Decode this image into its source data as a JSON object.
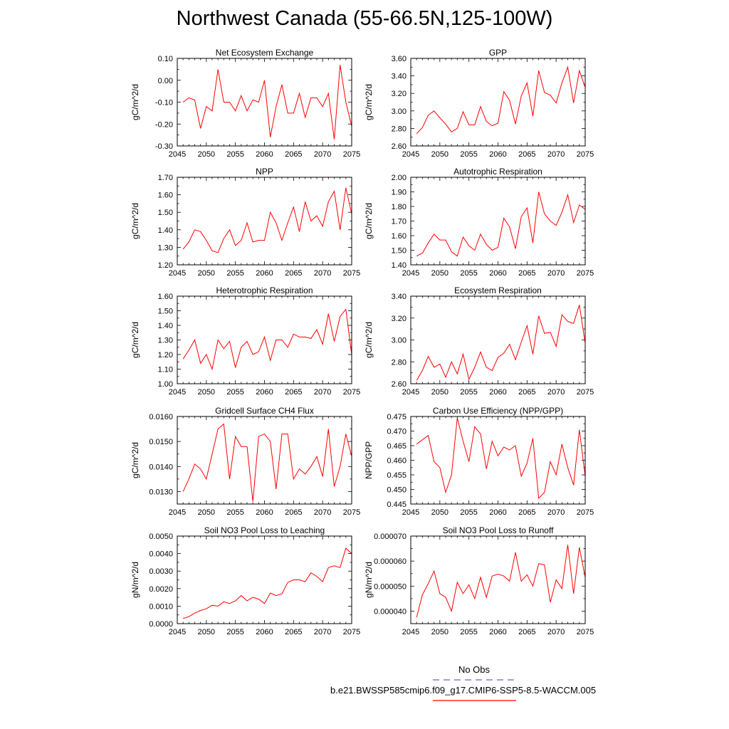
{
  "title": "Northwest Canada (55-66.5N,125-100W)",
  "legend": {
    "obs_label": "No Obs",
    "obs_color": "#6666cc",
    "model_label": "b.e21.BWSSP585cmip6.f09_g17.CMIP6-SSP5-8.5-WACCM.005",
    "model_color": "#ff0000"
  },
  "chart_data": [
    {
      "type": "line",
      "title": "Net Ecosystem Exchange",
      "ylabel": "gC/m^2/d",
      "xlim": [
        2045,
        2075
      ],
      "ylim": [
        -0.3,
        0.1
      ],
      "xticks": [
        "2045",
        "2050",
        "2055",
        "2060",
        "2065",
        "2070",
        "2075"
      ],
      "yticks": [
        "-0.30",
        "-0.20",
        "-0.10",
        "0.00",
        "0.10"
      ],
      "series": [
        {
          "x": [
            2046,
            2047,
            2048,
            2049,
            2050,
            2051,
            2052,
            2053,
            2054,
            2055,
            2056,
            2057,
            2058,
            2059,
            2060,
            2061,
            2062,
            2063,
            2064,
            2065,
            2066,
            2067,
            2068,
            2069,
            2070,
            2071,
            2072,
            2073,
            2074,
            2075
          ],
          "values": [
            -0.1,
            -0.08,
            -0.09,
            -0.22,
            -0.12,
            -0.14,
            0.05,
            -0.1,
            -0.1,
            -0.14,
            -0.07,
            -0.14,
            -0.09,
            -0.1,
            0.0,
            -0.26,
            -0.12,
            -0.02,
            -0.15,
            -0.15,
            -0.06,
            -0.17,
            -0.08,
            -0.08,
            -0.12,
            -0.06,
            -0.27,
            0.07,
            -0.1,
            -0.21
          ]
        }
      ]
    },
    {
      "type": "line",
      "title": "GPP",
      "ylabel": "gC/m^2/d",
      "xlim": [
        2045,
        2075
      ],
      "ylim": [
        2.6,
        3.6
      ],
      "xticks": [
        "2045",
        "2050",
        "2055",
        "2060",
        "2065",
        "2070",
        "2075"
      ],
      "yticks": [
        "2.60",
        "2.80",
        "3.00",
        "3.20",
        "3.40",
        "3.60"
      ],
      "series": [
        {
          "x": [
            2046,
            2047,
            2048,
            2049,
            2050,
            2051,
            2052,
            2053,
            2054,
            2055,
            2056,
            2057,
            2058,
            2059,
            2060,
            2061,
            2062,
            2063,
            2064,
            2065,
            2066,
            2067,
            2068,
            2069,
            2070,
            2071,
            2072,
            2073,
            2074,
            2075
          ],
          "values": [
            2.74,
            2.81,
            2.95,
            3.0,
            2.92,
            2.85,
            2.76,
            2.8,
            2.99,
            2.84,
            2.84,
            3.05,
            2.88,
            2.83,
            2.86,
            3.22,
            3.12,
            2.85,
            3.17,
            3.32,
            2.94,
            3.46,
            3.21,
            3.18,
            3.09,
            3.32,
            3.5,
            3.09,
            3.46,
            3.27
          ]
        }
      ]
    },
    {
      "type": "line",
      "title": "NPP",
      "ylabel": "gC/m^2/d",
      "xlim": [
        2045,
        2075
      ],
      "ylim": [
        1.2,
        1.7
      ],
      "xticks": [
        "2045",
        "2050",
        "2055",
        "2060",
        "2065",
        "2070",
        "2075"
      ],
      "yticks": [
        "1.20",
        "1.30",
        "1.40",
        "1.50",
        "1.60",
        "1.70"
      ],
      "series": [
        {
          "x": [
            2046,
            2047,
            2048,
            2049,
            2050,
            2051,
            2052,
            2053,
            2054,
            2055,
            2056,
            2057,
            2058,
            2059,
            2060,
            2061,
            2062,
            2063,
            2064,
            2065,
            2066,
            2067,
            2068,
            2069,
            2070,
            2071,
            2072,
            2073,
            2074,
            2075
          ],
          "values": [
            1.29,
            1.33,
            1.4,
            1.39,
            1.34,
            1.28,
            1.27,
            1.35,
            1.4,
            1.31,
            1.34,
            1.44,
            1.33,
            1.34,
            1.34,
            1.5,
            1.44,
            1.34,
            1.44,
            1.53,
            1.39,
            1.56,
            1.45,
            1.48,
            1.42,
            1.56,
            1.62,
            1.4,
            1.64,
            1.49
          ]
        }
      ]
    },
    {
      "type": "line",
      "title": "Autotrophic Respiration",
      "ylabel": "gC/m^2/d",
      "xlim": [
        2045,
        2075
      ],
      "ylim": [
        1.4,
        2.0
      ],
      "xticks": [
        "2045",
        "2050",
        "2055",
        "2060",
        "2065",
        "2070",
        "2075"
      ],
      "yticks": [
        "1.40",
        "1.50",
        "1.60",
        "1.70",
        "1.80",
        "1.90",
        "2.00"
      ],
      "series": [
        {
          "x": [
            2046,
            2047,
            2048,
            2049,
            2050,
            2051,
            2052,
            2053,
            2054,
            2055,
            2056,
            2057,
            2058,
            2059,
            2060,
            2061,
            2062,
            2063,
            2064,
            2065,
            2066,
            2067,
            2068,
            2069,
            2070,
            2071,
            2072,
            2073,
            2074,
            2075
          ],
          "values": [
            1.46,
            1.48,
            1.55,
            1.61,
            1.57,
            1.57,
            1.49,
            1.46,
            1.59,
            1.53,
            1.5,
            1.61,
            1.54,
            1.5,
            1.52,
            1.72,
            1.66,
            1.51,
            1.73,
            1.79,
            1.55,
            1.9,
            1.75,
            1.7,
            1.67,
            1.76,
            1.88,
            1.69,
            1.81,
            1.78
          ]
        }
      ]
    },
    {
      "type": "line",
      "title": "Heterotrophic Respiration",
      "ylabel": "gC/m^2/d",
      "xlim": [
        2045,
        2075
      ],
      "ylim": [
        1.0,
        1.6
      ],
      "xticks": [
        "2045",
        "2050",
        "2055",
        "2060",
        "2065",
        "2070",
        "2075"
      ],
      "yticks": [
        "1.00",
        "1.10",
        "1.20",
        "1.30",
        "1.40",
        "1.50",
        "1.60"
      ],
      "series": [
        {
          "x": [
            2046,
            2047,
            2048,
            2049,
            2050,
            2051,
            2052,
            2053,
            2054,
            2055,
            2056,
            2057,
            2058,
            2059,
            2060,
            2061,
            2062,
            2063,
            2064,
            2065,
            2066,
            2067,
            2068,
            2069,
            2070,
            2071,
            2072,
            2073,
            2074,
            2075
          ],
          "values": [
            1.17,
            1.23,
            1.3,
            1.14,
            1.2,
            1.1,
            1.3,
            1.24,
            1.29,
            1.11,
            1.25,
            1.29,
            1.2,
            1.22,
            1.32,
            1.16,
            1.3,
            1.3,
            1.25,
            1.34,
            1.32,
            1.32,
            1.31,
            1.37,
            1.27,
            1.48,
            1.29,
            1.46,
            1.51,
            1.2
          ]
        }
      ]
    },
    {
      "type": "line",
      "title": "Ecosystem Respiration",
      "ylabel": "gC/m^2/d",
      "xlim": [
        2045,
        2075
      ],
      "ylim": [
        2.6,
        3.4
      ],
      "xticks": [
        "2045",
        "2050",
        "2055",
        "2060",
        "2065",
        "2070",
        "2075"
      ],
      "yticks": [
        "2.60",
        "2.80",
        "3.00",
        "3.20",
        "3.40"
      ],
      "series": [
        {
          "x": [
            2046,
            2047,
            2048,
            2049,
            2050,
            2051,
            2052,
            2053,
            2054,
            2055,
            2056,
            2057,
            2058,
            2059,
            2060,
            2061,
            2062,
            2063,
            2064,
            2065,
            2066,
            2067,
            2068,
            2069,
            2070,
            2071,
            2072,
            2073,
            2074,
            2075
          ],
          "values": [
            2.63,
            2.72,
            2.85,
            2.75,
            2.78,
            2.66,
            2.8,
            2.69,
            2.87,
            2.64,
            2.75,
            2.89,
            2.75,
            2.72,
            2.84,
            2.88,
            2.96,
            2.82,
            2.98,
            3.13,
            2.87,
            3.22,
            3.06,
            3.07,
            2.94,
            3.23,
            3.17,
            3.15,
            3.32,
            2.97
          ]
        }
      ]
    },
    {
      "type": "line",
      "title": "Gridcell Surface CH4 Flux",
      "ylabel": "gC/m^2/d",
      "xlim": [
        2045,
        2075
      ],
      "ylim": [
        0.0125,
        0.016
      ],
      "xticks": [
        "2045",
        "2050",
        "2055",
        "2060",
        "2065",
        "2070",
        "2075"
      ],
      "yticks": [
        "0.0130",
        "0.0140",
        "0.0150",
        "0.0160"
      ],
      "series": [
        {
          "x": [
            2046,
            2047,
            2048,
            2049,
            2050,
            2051,
            2052,
            2053,
            2054,
            2055,
            2056,
            2057,
            2058,
            2059,
            2060,
            2061,
            2062,
            2063,
            2064,
            2065,
            2066,
            2067,
            2068,
            2069,
            2070,
            2071,
            2072,
            2073,
            2074,
            2075
          ],
          "values": [
            0.013,
            0.0135,
            0.0141,
            0.0139,
            0.0135,
            0.0145,
            0.0155,
            0.0157,
            0.0135,
            0.0152,
            0.0148,
            0.0148,
            0.0126,
            0.0152,
            0.0153,
            0.015,
            0.0131,
            0.0153,
            0.0153,
            0.0135,
            0.0139,
            0.0137,
            0.014,
            0.0144,
            0.0136,
            0.0155,
            0.0132,
            0.014,
            0.0153,
            0.0144
          ]
        }
      ]
    },
    {
      "type": "line",
      "title": "Carbon Use Efficiency (NPP/GPP)",
      "ylabel": "NPP/GPP",
      "xlim": [
        2045,
        2075
      ],
      "ylim": [
        0.445,
        0.475
      ],
      "xticks": [
        "2045",
        "2050",
        "2055",
        "2060",
        "2065",
        "2070",
        "2075"
      ],
      "yticks": [
        "0.445",
        "0.450",
        "0.455",
        "0.460",
        "0.465",
        "0.470",
        "0.475"
      ],
      "series": [
        {
          "x": [
            2046,
            2047,
            2048,
            2049,
            2050,
            2051,
            2052,
            2053,
            2054,
            2055,
            2056,
            2057,
            2058,
            2059,
            2060,
            2061,
            2062,
            2063,
            2064,
            2065,
            2066,
            2067,
            2068,
            2069,
            2070,
            2071,
            2072,
            2073,
            2074,
            2075
          ],
          "values": [
            0.4655,
            0.467,
            0.4685,
            0.4595,
            0.4575,
            0.449,
            0.455,
            0.4745,
            0.4665,
            0.4595,
            0.4715,
            0.469,
            0.457,
            0.4665,
            0.4615,
            0.4645,
            0.4635,
            0.465,
            0.4545,
            0.459,
            0.4675,
            0.447,
            0.449,
            0.4595,
            0.455,
            0.4655,
            0.4575,
            0.4515,
            0.4705,
            0.4545
          ]
        }
      ]
    },
    {
      "type": "line",
      "title": "Soil NO3 Pool Loss to Leaching",
      "ylabel": "gN/m^2/d",
      "xlim": [
        2045,
        2075
      ],
      "ylim": [
        0.0,
        0.005
      ],
      "xticks": [
        "2045",
        "2050",
        "2055",
        "2060",
        "2065",
        "2070",
        "2075"
      ],
      "yticks": [
        "0.0000",
        "0.0010",
        "0.0020",
        "0.0030",
        "0.0040",
        "0.0050"
      ],
      "series": [
        {
          "x": [
            2046,
            2047,
            2048,
            2049,
            2050,
            2051,
            2052,
            2053,
            2054,
            2055,
            2056,
            2057,
            2058,
            2059,
            2060,
            2061,
            2062,
            2063,
            2064,
            2065,
            2066,
            2067,
            2068,
            2069,
            2070,
            2071,
            2072,
            2073,
            2074,
            2075
          ],
          "values": [
            0.0003,
            0.0004,
            0.0006,
            0.00075,
            0.00085,
            0.00105,
            0.001,
            0.00125,
            0.00115,
            0.0013,
            0.0016,
            0.0013,
            0.0015,
            0.0014,
            0.00115,
            0.00175,
            0.0016,
            0.0017,
            0.00235,
            0.0025,
            0.0025,
            0.0024,
            0.0029,
            0.0027,
            0.0024,
            0.0032,
            0.0033,
            0.0032,
            0.0043,
            0.004
          ]
        }
      ]
    },
    {
      "type": "line",
      "title": "Soil NO3 Pool Loss to Runoff",
      "ylabel": "gN/m^2/d",
      "xlim": [
        2045,
        2075
      ],
      "ylim": [
        3.5e-05,
        7e-05
      ],
      "xticks": [
        "2045",
        "2050",
        "2055",
        "2060",
        "2065",
        "2070",
        "2075"
      ],
      "yticks": [
        "0.000040",
        "0.000050",
        "0.000060",
        "0.000070"
      ],
      "series": [
        {
          "x": [
            2046,
            2047,
            2048,
            2049,
            2050,
            2051,
            2052,
            2053,
            2054,
            2055,
            2056,
            2057,
            2058,
            2059,
            2060,
            2061,
            2062,
            2063,
            2064,
            2065,
            2066,
            2067,
            2068,
            2069,
            2070,
            2071,
            2072,
            2073,
            2074,
            2075
          ],
          "values": [
            3.75e-05,
            4.65e-05,
            5.1e-05,
            5.6e-05,
            4.7e-05,
            4.55e-05,
            4e-05,
            5.15e-05,
            4.7e-05,
            5.05e-05,
            4.5e-05,
            5.35e-05,
            4.55e-05,
            5.4e-05,
            5.48e-05,
            5.4e-05,
            5.2e-05,
            6.35e-05,
            5.2e-05,
            5.45e-05,
            5e-05,
            5.9e-05,
            5.85e-05,
            4.35e-05,
            5.25e-05,
            4.9e-05,
            6.65e-05,
            4.7e-05,
            6.55e-05,
            5.35e-05
          ]
        }
      ]
    }
  ]
}
